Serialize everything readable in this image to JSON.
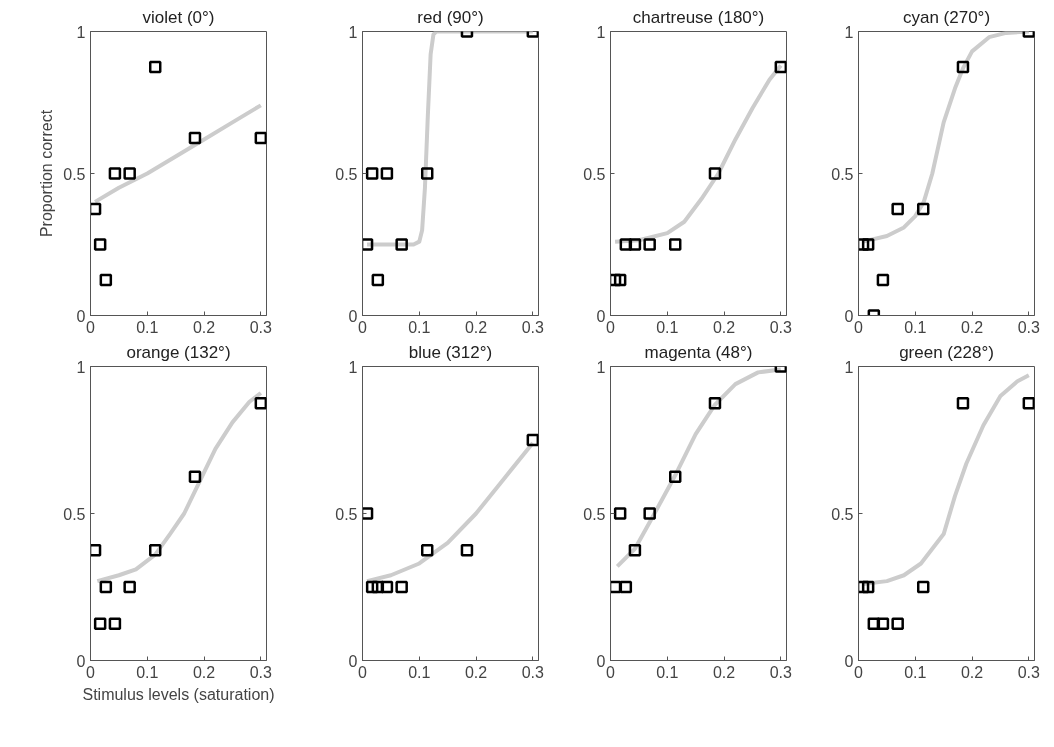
{
  "chart_data": [
    {
      "type": "scatter",
      "title": "violet (0°)",
      "ylabel": "Proportion correct",
      "xlim": [
        0,
        0.31
      ],
      "ylim": [
        0,
        1
      ],
      "xticks": [
        0,
        0.1,
        0.2,
        0.3
      ],
      "yticks": [
        0,
        0.5,
        1
      ],
      "series": [
        {
          "type": "line",
          "color": "#cccccc",
          "line_style": "solid",
          "x": [
            0.008,
            0.05,
            0.1,
            0.15,
            0.2,
            0.25,
            0.3
          ],
          "values": [
            0.4,
            0.45,
            0.5,
            0.56,
            0.62,
            0.68,
            0.74
          ]
        },
        {
          "marker": "square",
          "color": "#000000",
          "x": [
            0.008,
            0.017,
            0.027,
            0.043,
            0.069,
            0.114,
            0.184,
            0.3
          ],
          "values": [
            0.375,
            0.25,
            0.125,
            0.5,
            0.5,
            0.875,
            0.625,
            0.625
          ]
        }
      ]
    },
    {
      "type": "scatter",
      "title": "red (90°)",
      "xlim": [
        0,
        0.31
      ],
      "ylim": [
        0,
        1
      ],
      "xticks": [
        0,
        0.1,
        0.2,
        0.3
      ],
      "yticks": [
        0,
        0.5,
        1
      ],
      "series": [
        {
          "type": "line",
          "color": "#cccccc",
          "line_style": "solid",
          "x": [
            0.008,
            0.05,
            0.09,
            0.1,
            0.105,
            0.11,
            0.115,
            0.12,
            0.125,
            0.13,
            0.2,
            0.3
          ],
          "values": [
            0.25,
            0.25,
            0.25,
            0.26,
            0.3,
            0.45,
            0.7,
            0.92,
            0.99,
            1,
            1,
            1
          ]
        },
        {
          "marker": "square",
          "color": "#000000",
          "x": [
            0.008,
            0.017,
            0.027,
            0.043,
            0.069,
            0.114,
            0.184,
            0.3
          ],
          "values": [
            0.25,
            0.5,
            0.125,
            0.5,
            0.25,
            0.5,
            1,
            1
          ]
        }
      ]
    },
    {
      "type": "scatter",
      "title": "chartreuse (180°)",
      "xlim": [
        0,
        0.31
      ],
      "ylim": [
        0,
        1
      ],
      "xticks": [
        0,
        0.1,
        0.2,
        0.3
      ],
      "yticks": [
        0,
        0.5,
        1
      ],
      "series": [
        {
          "type": "line",
          "color": "#cccccc",
          "line_style": "solid",
          "x": [
            0.008,
            0.05,
            0.1,
            0.13,
            0.16,
            0.19,
            0.22,
            0.25,
            0.28,
            0.3
          ],
          "values": [
            0.26,
            0.265,
            0.29,
            0.33,
            0.41,
            0.5,
            0.62,
            0.73,
            0.83,
            0.88
          ]
        },
        {
          "marker": "square",
          "color": "#000000",
          "x": [
            0.008,
            0.017,
            0.027,
            0.043,
            0.069,
            0.114,
            0.184,
            0.3
          ],
          "values": [
            0.125,
            0.125,
            0.25,
            0.25,
            0.25,
            0.25,
            0.5,
            0.875
          ]
        }
      ]
    },
    {
      "type": "scatter",
      "title": "cyan (270°)",
      "xlim": [
        0,
        0.31
      ],
      "ylim": [
        0,
        1
      ],
      "xticks": [
        0,
        0.1,
        0.2,
        0.3
      ],
      "yticks": [
        0,
        0.5,
        1
      ],
      "series": [
        {
          "type": "line",
          "color": "#cccccc",
          "line_style": "solid",
          "x": [
            0.008,
            0.05,
            0.08,
            0.1,
            0.115,
            0.13,
            0.15,
            0.17,
            0.184,
            0.2,
            0.23,
            0.26,
            0.3
          ],
          "values": [
            0.26,
            0.28,
            0.31,
            0.35,
            0.4,
            0.5,
            0.68,
            0.8,
            0.87,
            0.93,
            0.98,
            0.995,
            1
          ]
        },
        {
          "marker": "square",
          "color": "#000000",
          "x": [
            0.008,
            0.017,
            0.027,
            0.043,
            0.069,
            0.114,
            0.184,
            0.3
          ],
          "values": [
            0.25,
            0.25,
            0,
            0.125,
            0.375,
            0.375,
            0.875,
            1
          ]
        }
      ]
    },
    {
      "type": "scatter",
      "title": "orange (132°)",
      "xlabel": "Stimulus levels (saturation)",
      "xlim": [
        0,
        0.31
      ],
      "ylim": [
        0,
        1
      ],
      "xticks": [
        0,
        0.1,
        0.2,
        0.3
      ],
      "yticks": [
        0,
        0.5,
        1
      ],
      "series": [
        {
          "type": "line",
          "color": "#cccccc",
          "line_style": "solid",
          "x": [
            0.012,
            0.05,
            0.08,
            0.114,
            0.14,
            0.165,
            0.19,
            0.22,
            0.25,
            0.28,
            0.3
          ],
          "values": [
            0.27,
            0.29,
            0.31,
            0.36,
            0.43,
            0.5,
            0.6,
            0.72,
            0.81,
            0.88,
            0.91
          ]
        },
        {
          "marker": "square",
          "color": "#000000",
          "x": [
            0.008,
            0.017,
            0.027,
            0.043,
            0.069,
            0.114,
            0.184,
            0.3
          ],
          "values": [
            0.375,
            0.125,
            0.25,
            0.125,
            0.25,
            0.375,
            0.625,
            0.875
          ]
        }
      ]
    },
    {
      "type": "scatter",
      "title": "blue (312°)",
      "xlim": [
        0,
        0.31
      ],
      "ylim": [
        0,
        1
      ],
      "xticks": [
        0,
        0.1,
        0.2,
        0.3
      ],
      "yticks": [
        0,
        0.5,
        1
      ],
      "series": [
        {
          "type": "line",
          "color": "#cccccc",
          "line_style": "solid",
          "x": [
            0.008,
            0.05,
            0.1,
            0.15,
            0.2,
            0.25,
            0.3
          ],
          "values": [
            0.27,
            0.29,
            0.33,
            0.4,
            0.5,
            0.62,
            0.74
          ]
        },
        {
          "marker": "square",
          "color": "#000000",
          "x": [
            0.008,
            0.017,
            0.027,
            0.043,
            0.069,
            0.114,
            0.184,
            0.3
          ],
          "values": [
            0.5,
            0.25,
            0.25,
            0.25,
            0.25,
            0.375,
            0.375,
            0.75
          ]
        }
      ]
    },
    {
      "type": "scatter",
      "title": "magenta (48°)",
      "xlim": [
        0,
        0.31
      ],
      "ylim": [
        0,
        1
      ],
      "xticks": [
        0,
        0.1,
        0.2,
        0.3
      ],
      "yticks": [
        0,
        0.5,
        1
      ],
      "series": [
        {
          "type": "line",
          "color": "#cccccc",
          "line_style": "solid",
          "x": [
            0.012,
            0.043,
            0.069,
            0.1,
            0.114,
            0.15,
            0.184,
            0.22,
            0.26,
            0.3
          ],
          "values": [
            0.32,
            0.38,
            0.47,
            0.58,
            0.63,
            0.77,
            0.87,
            0.94,
            0.98,
            0.99
          ]
        },
        {
          "marker": "square",
          "color": "#000000",
          "x": [
            0.008,
            0.017,
            0.027,
            0.043,
            0.069,
            0.114,
            0.184,
            0.3
          ],
          "values": [
            0.25,
            0.5,
            0.25,
            0.375,
            0.5,
            0.625,
            0.875,
            1
          ]
        }
      ]
    },
    {
      "type": "scatter",
      "title": "green (228°)",
      "xlim": [
        0,
        0.31
      ],
      "ylim": [
        0,
        1
      ],
      "xticks": [
        0,
        0.1,
        0.2,
        0.3
      ],
      "yticks": [
        0,
        0.5,
        1
      ],
      "series": [
        {
          "type": "line",
          "color": "#cccccc",
          "line_style": "solid",
          "x": [
            0.008,
            0.05,
            0.08,
            0.11,
            0.13,
            0.15,
            0.17,
            0.19,
            0.22,
            0.25,
            0.28,
            0.3
          ],
          "values": [
            0.26,
            0.27,
            0.29,
            0.33,
            0.38,
            0.43,
            0.56,
            0.67,
            0.8,
            0.9,
            0.95,
            0.97
          ]
        },
        {
          "marker": "square",
          "color": "#000000",
          "x": [
            0.008,
            0.017,
            0.027,
            0.043,
            0.069,
            0.114,
            0.184,
            0.3
          ],
          "values": [
            0.25,
            0.25,
            0.125,
            0.125,
            0.125,
            0.25,
            0.875,
            0.875
          ]
        }
      ]
    }
  ]
}
